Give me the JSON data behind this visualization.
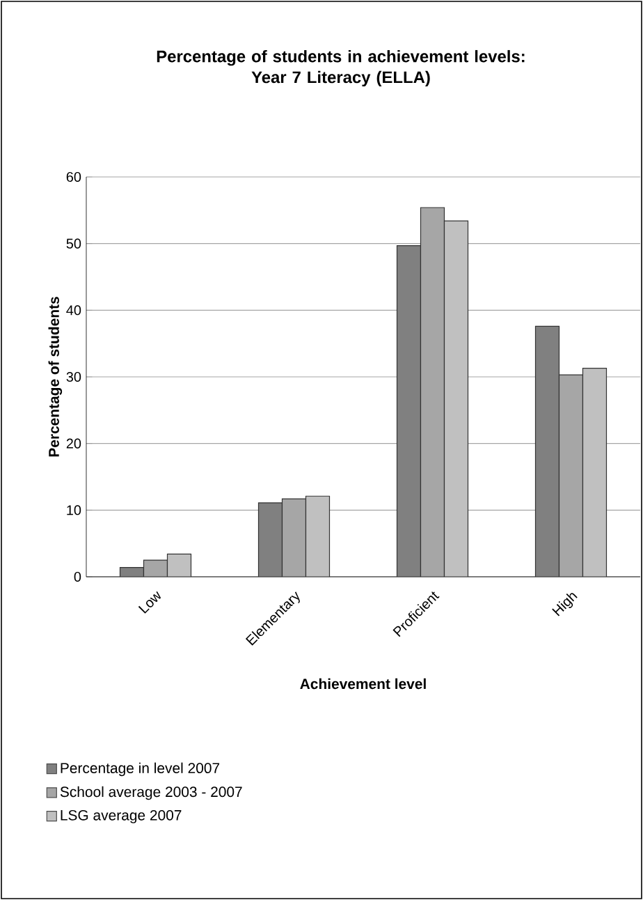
{
  "chart_data": {
    "type": "bar",
    "title": "Percentage of students in achievement levels:\nYear 7 Literacy (ELLA)",
    "xlabel": "Achievement level",
    "ylabel": "Percentage of students",
    "categories": [
      "Low",
      "Elementary",
      "Proficient",
      "High"
    ],
    "series": [
      {
        "name": "Percentage in level 2007",
        "color": "#808080",
        "values": [
          1.4,
          11.1,
          49.7,
          37.6
        ]
      },
      {
        "name": "School average 2003 - 2007",
        "color": "#a6a6a6",
        "values": [
          2.5,
          11.7,
          55.4,
          30.3
        ]
      },
      {
        "name": "LSG average 2007",
        "color": "#c0c0c0",
        "values": [
          3.4,
          12.1,
          53.4,
          31.3
        ]
      }
    ],
    "ylim": [
      0,
      60
    ],
    "yticks": [
      0,
      10,
      20,
      30,
      40,
      50,
      60
    ],
    "grid": "y",
    "legend": "bottom"
  }
}
